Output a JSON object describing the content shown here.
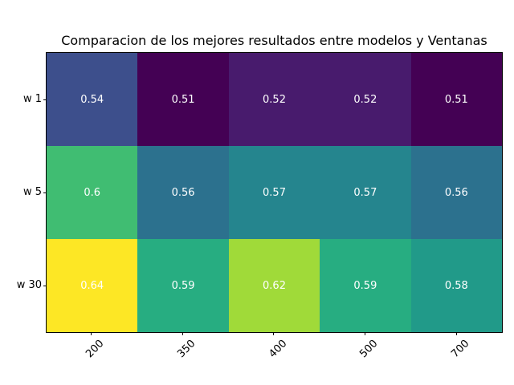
{
  "chart_data": {
    "type": "heatmap",
    "title": "Comparacion de los mejores resultados entre modelos y Ventanas",
    "rows": [
      "w 1",
      "w 5",
      "w 30"
    ],
    "columns": [
      "200",
      "350",
      "400",
      "500",
      "700"
    ],
    "values": [
      [
        0.54,
        0.51,
        0.52,
        0.52,
        0.51
      ],
      [
        0.6,
        0.56,
        0.57,
        0.57,
        0.56
      ],
      [
        0.64,
        0.59,
        0.62,
        0.59,
        0.58
      ]
    ],
    "cell_labels": [
      [
        "0.54",
        "0.51",
        "0.52",
        "0.52",
        "0.51"
      ],
      [
        "0.6",
        "0.56",
        "0.57",
        "0.57",
        "0.56"
      ],
      [
        "0.64",
        "0.59",
        "0.62",
        "0.59",
        "0.58"
      ]
    ],
    "cell_colors": [
      [
        "#3d4f8c",
        "#440154",
        "#481b6d",
        "#481b6d",
        "#440154"
      ],
      [
        "#40bd72",
        "#2c718e",
        "#25858e",
        "#25858e",
        "#2c718e"
      ],
      [
        "#fde725",
        "#27ad81",
        "#a0da39",
        "#27ad81",
        "#219a89"
      ]
    ],
    "colormap": "viridis",
    "vmin": 0.51,
    "vmax": 0.64,
    "cell_text_color": "#ffffff",
    "legend": "none",
    "grid": "off"
  }
}
